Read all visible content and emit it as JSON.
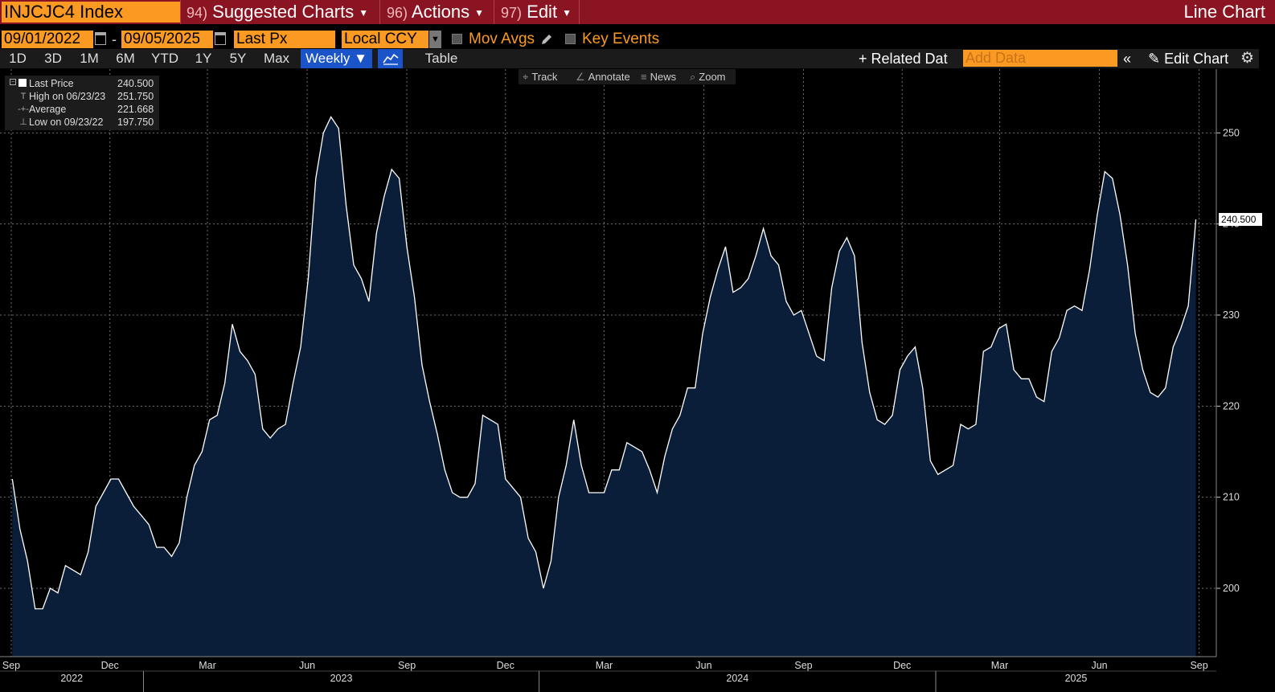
{
  "header": {
    "ticker": "INJCJC4 Index",
    "menu": [
      {
        "num": "94)",
        "label": "Suggested Charts"
      },
      {
        "num": "96)",
        "label": "Actions"
      },
      {
        "num": "97)",
        "label": "Edit"
      }
    ],
    "chart_type_label": "Line Chart"
  },
  "controls": {
    "start_date": "09/01/2022",
    "end_date": "09/05/2025",
    "date_separator": "-",
    "field": "Last Px",
    "currency": "Local CCY",
    "mov_avgs": "Mov Avgs",
    "key_events": "Key Events"
  },
  "range_buttons": [
    "1D",
    "3D",
    "1M",
    "6M",
    "YTD",
    "1Y",
    "5Y",
    "Max"
  ],
  "periodicity": "Weekly ▼",
  "table_label": "Table",
  "related_data": "+ Related Dat",
  "add_data_placeholder": "Add Data",
  "collapse_glyph": "«",
  "edit_chart": "Edit Chart",
  "chart_tools": [
    "Track",
    "Annotate",
    "News",
    "Zoom"
  ],
  "legend": [
    {
      "label": "Last Price",
      "value": "240.500"
    },
    {
      "label": "High on 06/23/23",
      "value": "251.750"
    },
    {
      "label": "Average",
      "value": "221.668"
    },
    {
      "label": "Low on 09/23/22",
      "value": "197.750"
    }
  ],
  "colors": {
    "area_fill": "#0a1e3a",
    "line": "#ffffff",
    "grid": "#6e6e6e",
    "accent_orange": "#fb9a22",
    "header_red": "#8a1422",
    "active_blue": "#1a54c8"
  },
  "chart_data": {
    "type": "area",
    "series": [
      {
        "name": "Last Price",
        "x_start": "2022-09-02",
        "x_step_days": 7,
        "values": [
          212.0,
          206.5,
          203.0,
          197.75,
          197.75,
          200.0,
          199.5,
          202.5,
          202.0,
          201.5,
          204.0,
          209.0,
          210.5,
          212.0,
          212.0,
          210.5,
          209.0,
          208.0,
          207.0,
          204.5,
          204.5,
          203.5,
          205.0,
          210.0,
          213.5,
          215.0,
          218.5,
          219.0,
          222.5,
          229.0,
          226.0,
          225.0,
          223.5,
          217.5,
          216.5,
          217.5,
          218.0,
          222.5,
          226.5,
          234.0,
          245.0,
          250.0,
          251.75,
          250.5,
          242.0,
          235.5,
          234.0,
          231.5,
          239.0,
          243.0,
          246.0,
          245.0,
          237.5,
          232.0,
          224.5,
          220.5,
          217.0,
          213.0,
          210.5,
          210.0,
          210.0,
          211.5,
          219.0,
          218.5,
          218.0,
          212.0,
          211.0,
          210.0,
          205.5,
          204.0,
          200.0,
          203.0,
          210.0,
          213.5,
          218.5,
          213.5,
          210.5,
          210.5,
          210.5,
          213.0,
          213.0,
          216.0,
          215.5,
          215.0,
          213.0,
          210.5,
          214.5,
          217.5,
          219.0,
          222.0,
          222.0,
          228.0,
          232.0,
          235.0,
          237.5,
          232.5,
          233.0,
          234.0,
          236.5,
          239.5,
          236.5,
          235.5,
          231.5,
          230.0,
          230.5,
          228.0,
          225.5,
          225.0,
          233.0,
          237.0,
          238.5,
          236.5,
          227.0,
          221.5,
          218.5,
          218.0,
          219.0,
          224.0,
          225.5,
          226.5,
          222.0,
          214.0,
          212.5,
          213.0,
          213.5,
          218.0,
          217.5,
          218.0,
          226.0,
          226.5,
          228.5,
          229.0,
          224.0,
          223.0,
          223.0,
          221.0,
          220.5,
          226.0,
          227.5,
          230.5,
          231.0,
          230.5,
          235.0,
          241.0,
          245.75,
          245.0,
          241.0,
          235.5,
          228.0,
          224.0,
          221.5,
          221.0,
          222.0,
          226.5,
          228.5,
          231.0,
          240.5
        ]
      }
    ],
    "x_tick_labels": [
      "Sep",
      "Dec",
      "Mar",
      "Jun",
      "Sep",
      "Dec",
      "Mar",
      "Jun",
      "Sep",
      "Dec",
      "Mar",
      "Jun",
      "Sep"
    ],
    "x_tick_dates": [
      "2022-09-01",
      "2022-12-01",
      "2023-03-01",
      "2023-06-01",
      "2023-09-01",
      "2023-12-01",
      "2024-03-01",
      "2024-06-01",
      "2024-09-01",
      "2024-12-01",
      "2025-03-01",
      "2025-06-01",
      "2025-09-01"
    ],
    "year_labels": [
      "2022",
      "2023",
      "2024",
      "2025"
    ],
    "year_boundaries": [
      "2023-01-01",
      "2024-01-01",
      "2025-01-01"
    ],
    "y_ticks": [
      200,
      210,
      220,
      230,
      240,
      250
    ],
    "ylim": [
      192.5,
      257.0
    ],
    "last_value_label": "240.500",
    "grid": true,
    "y_axis_side": "right"
  }
}
